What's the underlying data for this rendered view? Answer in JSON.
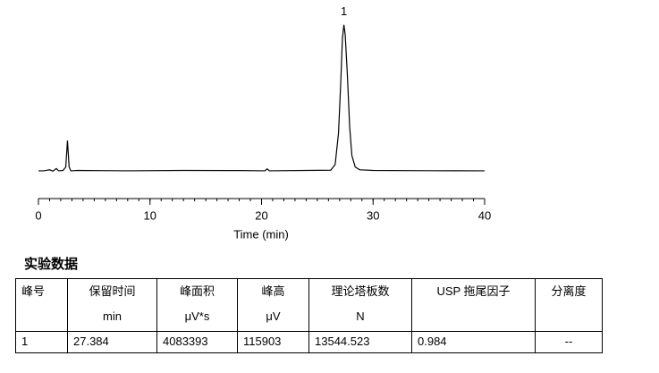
{
  "chart_data": {
    "type": "line",
    "xlabel": "Time (min)",
    "x": [
      0,
      0.5,
      1.0,
      1.3,
      1.6,
      1.8,
      2.2,
      2.45,
      2.6,
      2.75,
      2.9,
      3.5,
      8,
      13,
      18,
      20.3,
      20.5,
      20.7,
      24,
      26.2,
      26.6,
      26.9,
      27.1,
      27.25,
      27.384,
      27.5,
      27.7,
      27.9,
      28.1,
      28.4,
      28.8,
      30,
      35,
      40
    ],
    "values": [
      0,
      0,
      800,
      -300,
      1800,
      0,
      300,
      3000,
      24000,
      3000,
      0,
      300,
      0,
      300,
      200,
      0,
      1500,
      0,
      300,
      500,
      5000,
      30000,
      70000,
      105000,
      115903,
      108000,
      75000,
      35000,
      12000,
      3000,
      800,
      300,
      100,
      0
    ],
    "color": "#000000",
    "xlim": [
      0,
      40
    ],
    "xticks": [
      0,
      10,
      20,
      30,
      40
    ],
    "xminor": 1,
    "ylim": [
      -10000,
      125000
    ],
    "annotations": [
      {
        "text": "1",
        "x": 27.384,
        "y": 115903
      }
    ]
  },
  "table": {
    "title": "实验数据",
    "header": [
      [
        "峰号"
      ],
      [
        "保留时间",
        "min"
      ],
      [
        "峰面积",
        "μV*s"
      ],
      [
        "峰高",
        "μV"
      ],
      [
        "理论塔板数",
        "N"
      ],
      [
        "USP 拖尾因子"
      ],
      [
        "分离度"
      ]
    ],
    "rows": [
      [
        "1",
        "27.384",
        "4083393",
        "115903",
        "13544.523",
        "0.984",
        "--"
      ]
    ]
  }
}
